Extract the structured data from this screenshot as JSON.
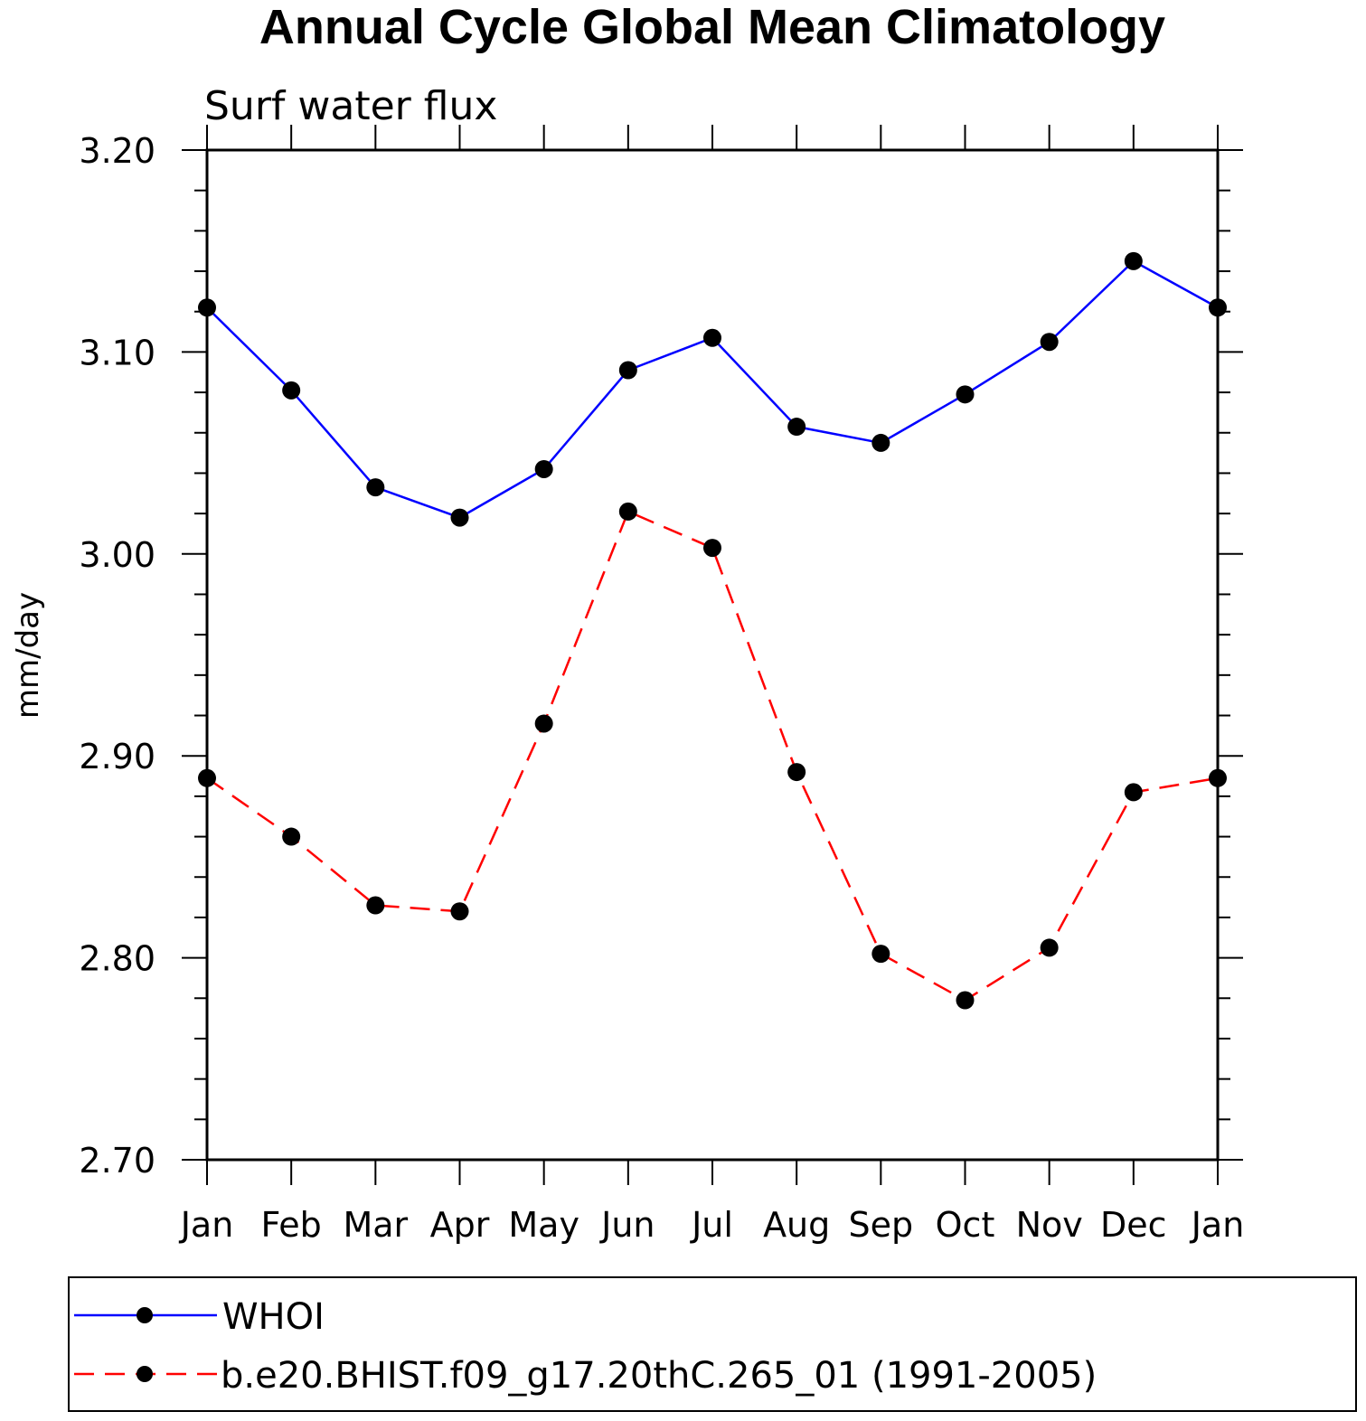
{
  "chart_data": {
    "type": "line",
    "title": "Annual Cycle Global Mean Climatology",
    "subtitle": "Surf water flux",
    "xlabel": "",
    "ylabel": "mm/day",
    "categories": [
      "Jan",
      "Feb",
      "Mar",
      "Apr",
      "May",
      "Jun",
      "Jul",
      "Aug",
      "Sep",
      "Oct",
      "Nov",
      "Dec",
      "Jan"
    ],
    "ylim": [
      2.7,
      3.2
    ],
    "yticks": [
      "2.70",
      "2.80",
      "2.90",
      "3.00",
      "3.10",
      "3.20"
    ],
    "legend_placement": "bottom",
    "grid": false,
    "series": [
      {
        "name": "WHOI",
        "color": "#0000ff",
        "style": "solid",
        "marker": "filled-circle",
        "values": [
          3.122,
          3.081,
          3.033,
          3.018,
          3.042,
          3.091,
          3.107,
          3.063,
          3.055,
          3.079,
          3.105,
          3.145,
          3.122
        ]
      },
      {
        "name": "b.e20.BHIST.f09_g17.20thC.265_01 (1991-2005)",
        "color": "#ff0000",
        "style": "dashed",
        "marker": "filled-circle",
        "values": [
          2.889,
          2.86,
          2.826,
          2.823,
          2.916,
          3.021,
          3.003,
          2.892,
          2.802,
          2.779,
          2.805,
          2.882,
          2.889
        ]
      }
    ]
  }
}
